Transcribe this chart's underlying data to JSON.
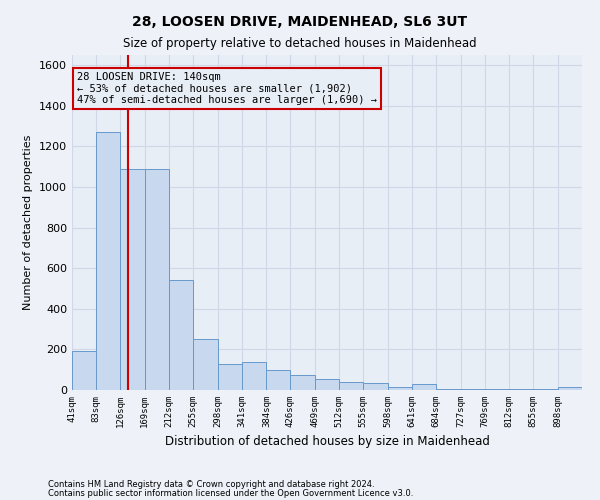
{
  "title1": "28, LOOSEN DRIVE, MAIDENHEAD, SL6 3UT",
  "title2": "Size of property relative to detached houses in Maidenhead",
  "xlabel": "Distribution of detached houses by size in Maidenhead",
  "ylabel": "Number of detached properties",
  "footnote1": "Contains HM Land Registry data © Crown copyright and database right 2024.",
  "footnote2": "Contains public sector information licensed under the Open Government Licence v3.0.",
  "bar_edges": [
    41,
    83,
    126,
    169,
    212,
    255,
    298,
    341,
    384,
    426,
    469,
    512,
    555,
    598,
    641,
    684,
    727,
    769,
    812,
    855,
    898,
    941
  ],
  "bar_heights": [
    190,
    1270,
    1090,
    1090,
    540,
    250,
    130,
    140,
    100,
    75,
    55,
    40,
    35,
    15,
    30,
    5,
    5,
    5,
    5,
    5,
    15
  ],
  "bar_color": "#c8d9ef",
  "bar_edge_color": "#6699cc",
  "vline_x": 140,
  "vline_color": "#cc0000",
  "annotation_title": "28 LOOSEN DRIVE: 140sqm",
  "annotation_line1": "← 53% of detached houses are smaller (1,902)",
  "annotation_line2": "47% of semi-detached houses are larger (1,690) →",
  "annotation_box_edge_color": "#cc0000",
  "ylim": [
    0,
    1650
  ],
  "yticks": [
    0,
    200,
    400,
    600,
    800,
    1000,
    1200,
    1400,
    1600
  ],
  "background_color": "#eef2f8",
  "grid_color": "#d0d8e8",
  "ax_bg_color": "#e8eef6"
}
